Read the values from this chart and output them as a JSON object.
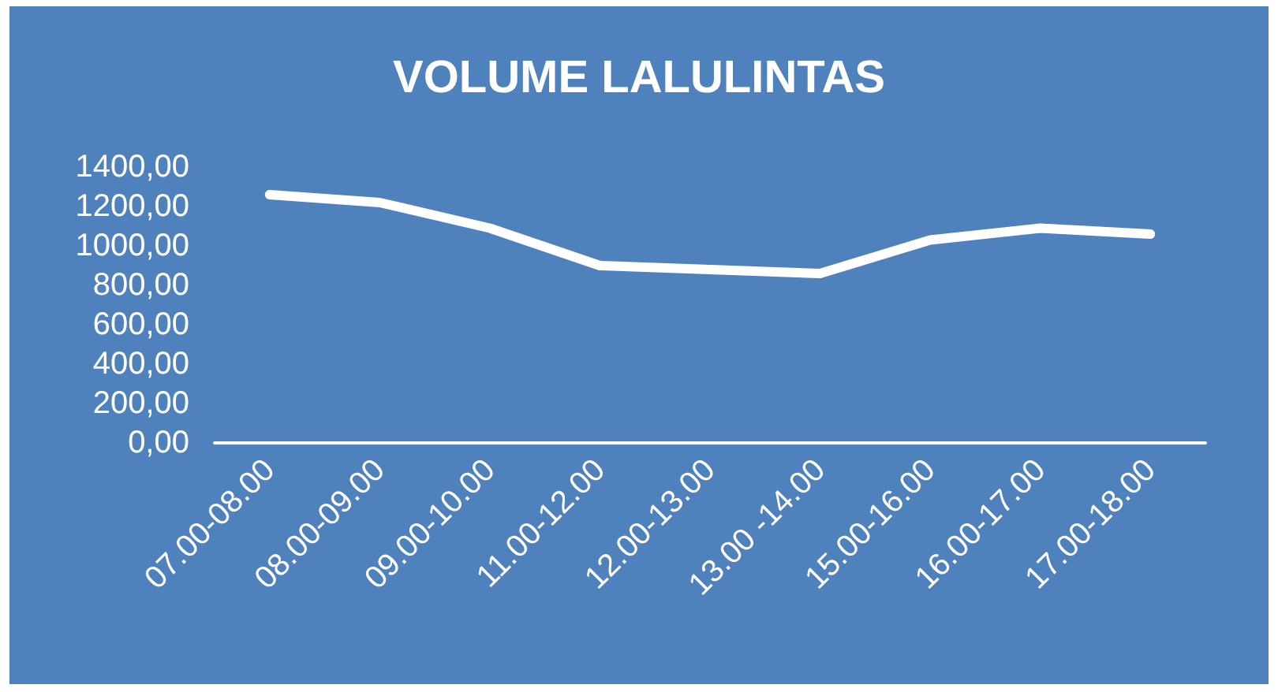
{
  "chart_data": {
    "type": "line",
    "title": "VOLUME LALULINTAS",
    "categories": [
      "07.00-08.00",
      "08.00-09.00",
      "09.00-10.00",
      "11.00-12.00",
      "12.00-13.00",
      "13.00 -14.00",
      "15.00-16.00",
      "16.00-17.00",
      "17.00-18.00"
    ],
    "series": [
      {
        "color": "#ffffff",
        "values": [
          1260,
          1220,
          1090,
          900,
          880,
          860,
          1030,
          1090,
          1060
        ]
      }
    ],
    "ylim": [
      0,
      1400
    ],
    "yticks": [
      {
        "value": 0,
        "label": "0,00"
      },
      {
        "value": 200,
        "label": "200,00"
      },
      {
        "value": 400,
        "label": "400,00"
      },
      {
        "value": 600,
        "label": "600,00"
      },
      {
        "value": 800,
        "label": "800,00"
      },
      {
        "value": 1000,
        "label": "1000,00"
      },
      {
        "value": 1200,
        "label": "1200,00"
      },
      {
        "value": 1400,
        "label": "1400,00"
      }
    ],
    "grid": false,
    "marker": "none",
    "line_style": "solid"
  }
}
